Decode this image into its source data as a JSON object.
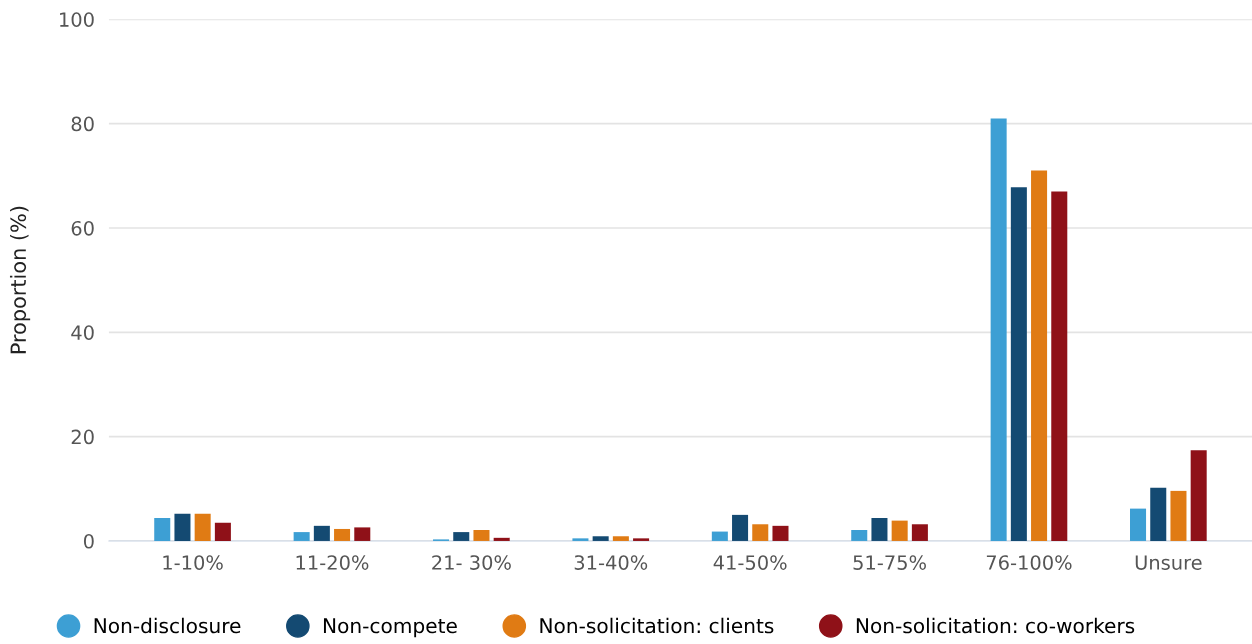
{
  "chart_data": {
    "type": "bar",
    "ylabel": "Proportion (%)",
    "categories": [
      "1-10%",
      "11-20%",
      "21- 30%",
      "31-40%",
      "41-50%",
      "51-75%",
      "76-100%",
      "Unsure"
    ],
    "series": [
      {
        "name": "Non-disclosure",
        "color": "#3d9fd4",
        "values": [
          4.4,
          1.7,
          0.3,
          0.5,
          1.8,
          2.1,
          81,
          6.2
        ]
      },
      {
        "name": "Non-compete",
        "color": "#144a72",
        "values": [
          5.2,
          2.9,
          1.7,
          0.9,
          5.0,
          4.4,
          67.8,
          10.2
        ]
      },
      {
        "name": "Non-solicitation: clients",
        "color": "#e07b14",
        "values": [
          5.2,
          2.3,
          2.1,
          0.9,
          3.2,
          3.9,
          71.0,
          9.6
        ]
      },
      {
        "name": "Non-solicitation: co-workers",
        "color": "#8f1118",
        "values": [
          3.5,
          2.6,
          0.6,
          0.5,
          2.9,
          3.2,
          67.0,
          17.4
        ]
      }
    ],
    "ylim": [
      0,
      100
    ],
    "yticks": [
      0,
      20,
      40,
      60,
      80,
      100
    ],
    "grid": "y",
    "legend": "bottom"
  }
}
